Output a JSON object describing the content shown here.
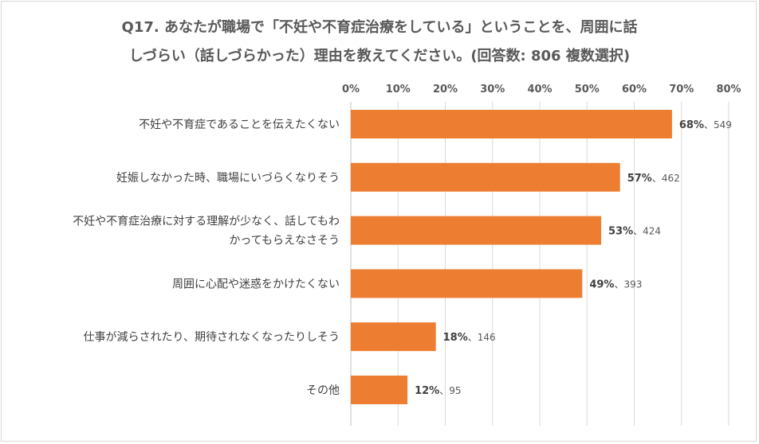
{
  "chart_data": {
    "type": "bar",
    "orientation": "horizontal",
    "title_lines": [
      "Q17. あなたが職場で「不妊や不育症治療をしている」ということを、周囲に話",
      "しづらい（話しづらかった）理由を教えてください。(回答数: 806 複数選択)"
    ],
    "xlim": [
      0,
      80
    ],
    "x_ticks": [
      "0%",
      "10%",
      "20%",
      "30%",
      "40%",
      "50%",
      "60%",
      "70%",
      "80%"
    ],
    "x_tick_values": [
      0,
      10,
      20,
      30,
      40,
      50,
      60,
      70,
      80
    ],
    "bar_color": "#ED7D31",
    "grid": true,
    "categories": [
      {
        "label_lines": [
          "不妊や不育症であることを伝えたくない"
        ],
        "percent": 68,
        "percent_text": "68%",
        "count_text": "、549"
      },
      {
        "label_lines": [
          "妊娠しなかった時、職場にいづらくなりそう"
        ],
        "percent": 57,
        "percent_text": "57%",
        "count_text": "、462"
      },
      {
        "label_lines": [
          "不妊や不育症治療に対する理解が少なく、話してもわ",
          "かってもらえなさそう"
        ],
        "percent": 53,
        "percent_text": "53%",
        "count_text": "、424"
      },
      {
        "label_lines": [
          "周囲に心配や迷惑をかけたくない"
        ],
        "percent": 49,
        "percent_text": "49%",
        "count_text": "、393"
      },
      {
        "label_lines": [
          "仕事が減らされたり、期待されなくなったりしそう"
        ],
        "percent": 18,
        "percent_text": "18%",
        "count_text": "、146"
      },
      {
        "label_lines": [
          "その他"
        ],
        "percent": 12,
        "percent_text": "12%",
        "count_text": "、95"
      }
    ]
  }
}
